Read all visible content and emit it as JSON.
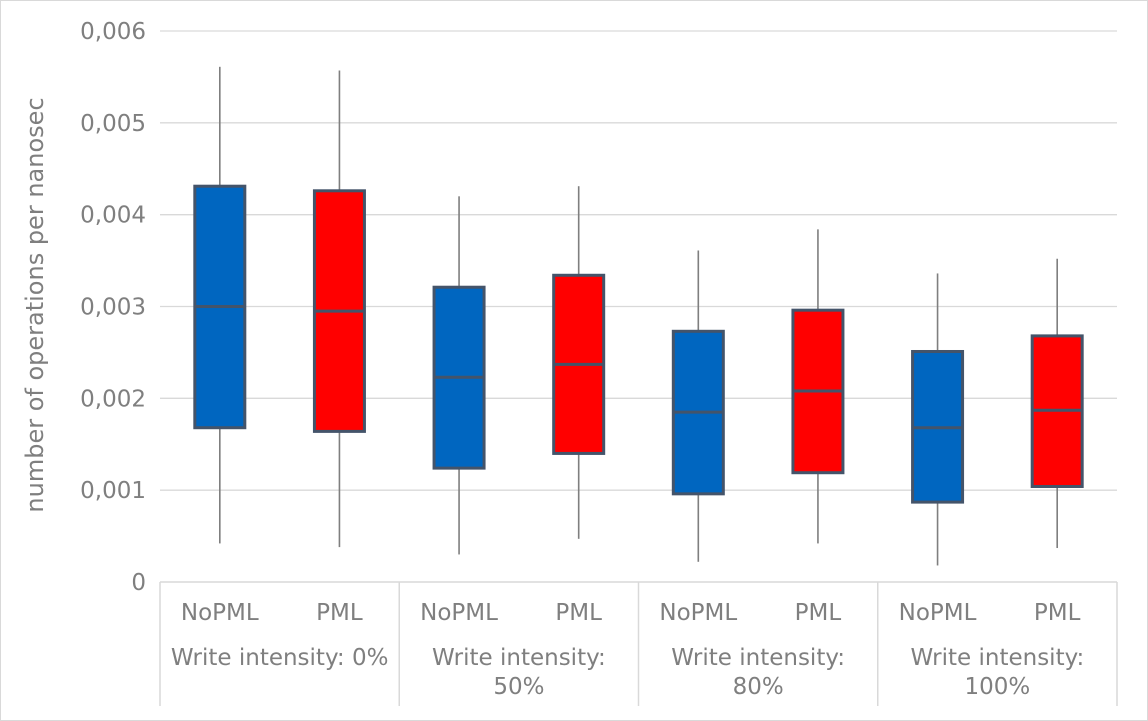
{
  "chart_data": {
    "type": "box",
    "ylabel": "number of operations per nanosec",
    "ylim": [
      0,
      0.006
    ],
    "yticks": [
      0,
      0.001,
      0.002,
      0.003,
      0.004,
      0.005,
      0.006
    ],
    "ytick_labels": [
      "0",
      "0,001",
      "0,002",
      "0,003",
      "0,004",
      "0,005",
      "0,006"
    ],
    "grid": true,
    "colors": {
      "NoPML": "#0066c0",
      "PML": "#ff0000",
      "box_edge": "#44546a",
      "whisker": "#7f7f7f"
    },
    "groups": [
      {
        "label_lines": [
          "Write intensity: 0%"
        ],
        "categories": [
          "NoPML",
          "PML"
        ]
      },
      {
        "label_lines": [
          "Write intensity:",
          "50%"
        ],
        "categories": [
          "NoPML",
          "PML"
        ]
      },
      {
        "label_lines": [
          "Write intensity:",
          "80%"
        ],
        "categories": [
          "NoPML",
          "PML"
        ]
      },
      {
        "label_lines": [
          "Write intensity:",
          "100%"
        ],
        "categories": [
          "NoPML",
          "PML"
        ]
      }
    ],
    "boxes": [
      {
        "group": 0,
        "series": "NoPML",
        "min": 0.00042,
        "q1": 0.00168,
        "median": 0.003,
        "q3": 0.00431,
        "max": 0.00561
      },
      {
        "group": 0,
        "series": "PML",
        "min": 0.00038,
        "q1": 0.00164,
        "median": 0.00295,
        "q3": 0.00426,
        "max": 0.00557
      },
      {
        "group": 1,
        "series": "NoPML",
        "min": 0.0003,
        "q1": 0.00124,
        "median": 0.00223,
        "q3": 0.00321,
        "max": 0.0042
      },
      {
        "group": 1,
        "series": "PML",
        "min": 0.00047,
        "q1": 0.0014,
        "median": 0.00237,
        "q3": 0.00334,
        "max": 0.00431
      },
      {
        "group": 2,
        "series": "NoPML",
        "min": 0.00022,
        "q1": 0.00096,
        "median": 0.00185,
        "q3": 0.00273,
        "max": 0.00361
      },
      {
        "group": 2,
        "series": "PML",
        "min": 0.00042,
        "q1": 0.00119,
        "median": 0.00208,
        "q3": 0.00296,
        "max": 0.00384
      },
      {
        "group": 3,
        "series": "NoPML",
        "min": 0.00018,
        "q1": 0.00087,
        "median": 0.00168,
        "q3": 0.00251,
        "max": 0.00336
      },
      {
        "group": 3,
        "series": "PML",
        "min": 0.00037,
        "q1": 0.00104,
        "median": 0.00187,
        "q3": 0.00268,
        "max": 0.00352
      }
    ]
  }
}
